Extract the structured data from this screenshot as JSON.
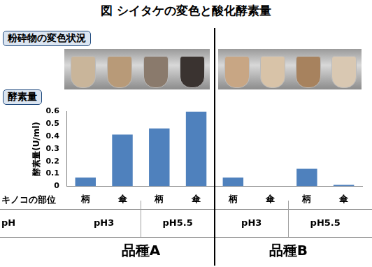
{
  "title": "図 シイタケの変色と酸化酵素量",
  "photo_label": "粉砕物の変色状況",
  "chart_data": {
    "type": "bar",
    "title": "酵素量",
    "y_label": "酵素量(U/ml)",
    "x_label": "キノコの部位",
    "categories": [
      "柄",
      "傘",
      "柄",
      "傘",
      "柄",
      "傘",
      "柄",
      "傘"
    ],
    "values": [
      0.07,
      0.415,
      0.465,
      0.6,
      0.07,
      0,
      0.14,
      0.01
    ],
    "ph_label": "pH",
    "ph": [
      "pH3",
      "pH3",
      "pH5.5",
      "pH5.5",
      "pH3",
      "pH3",
      "pH5.5",
      "pH5.5"
    ],
    "varieties": [
      "品種A",
      "品種A",
      "品種A",
      "品種A",
      "品種B",
      "品種B",
      "品種B",
      "品種B"
    ],
    "color": "#4f81bd",
    "ylim": [
      0,
      0.6
    ],
    "yticks": [
      0,
      0.1,
      0.2,
      0.3,
      0.4,
      0.5,
      0.6
    ],
    "grid": false
  }
}
